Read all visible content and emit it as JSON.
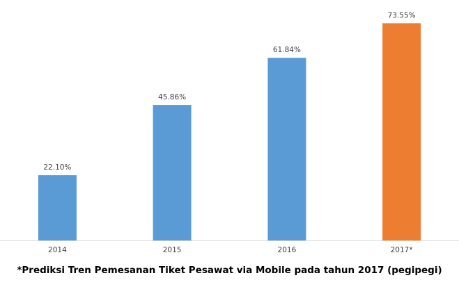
{
  "chart_data": {
    "type": "bar",
    "categories": [
      "2014",
      "2015",
      "2016",
      "2017*"
    ],
    "values": [
      22.1,
      45.86,
      61.84,
      73.55
    ],
    "value_labels": [
      "22.10%",
      "45.86%",
      "61.84%",
      "73.55%"
    ],
    "colors": [
      "#5b9bd5",
      "#5b9bd5",
      "#5b9bd5",
      "#ed7d31"
    ],
    "ylim": [
      0,
      80
    ],
    "grid": false,
    "legend": "none",
    "xlabel": "",
    "ylabel": ""
  },
  "caption": "*Prediksi Tren Pemesanan Tiket Pesawat via Mobile pada tahun 2017 (pegipegi)",
  "axis_color": "#d9d9d9"
}
